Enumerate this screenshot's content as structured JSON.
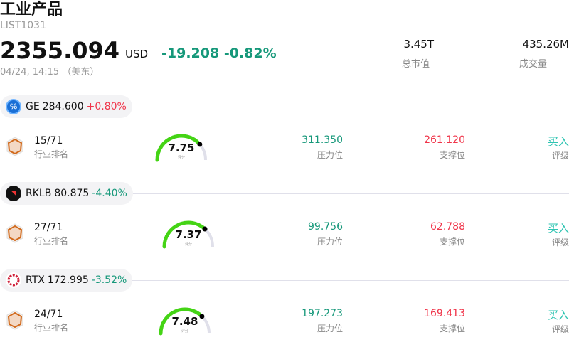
{
  "header": {
    "title": "工业产品",
    "code": "LIST1031",
    "price": "2355.094",
    "currency": "USD",
    "change": "-19.208",
    "change_pct": "-0.82%",
    "time": "04/24, 14:15 （美东）",
    "market_cap": {
      "value": "3.45T",
      "label": "总市值"
    },
    "volume": {
      "value": "435.26M",
      "label": "成交量"
    }
  },
  "labels": {
    "rank": "行业排名",
    "resistance": "压力位",
    "support": "支撑位",
    "rating": "评级",
    "score": "评分"
  },
  "colors": {
    "up": "#f0354a",
    "down": "#16987a",
    "gauge": "#44d415",
    "buy": "#2fc4b2"
  },
  "stocks": [
    {
      "ticker": "GE",
      "price": "284.600",
      "change": "+0.80%",
      "dir": "up",
      "rank": "15/71",
      "score": "7.75",
      "score_value": 7.75,
      "resistance": "311.350",
      "support": "261.120",
      "rating": "买入",
      "logo": "ge-logo"
    },
    {
      "ticker": "RKLB",
      "price": "80.875",
      "change": "-4.40%",
      "dir": "down",
      "rank": "27/71",
      "score": "7.37",
      "score_value": 7.37,
      "resistance": "99.756",
      "support": "62.788",
      "rating": "买入",
      "logo": "rklb-logo"
    },
    {
      "ticker": "RTX",
      "price": "172.995",
      "change": "-3.52%",
      "dir": "down",
      "rank": "24/71",
      "score": "7.48",
      "score_value": 7.48,
      "resistance": "197.273",
      "support": "169.413",
      "rating": "买入",
      "logo": "rtx-logo"
    }
  ]
}
